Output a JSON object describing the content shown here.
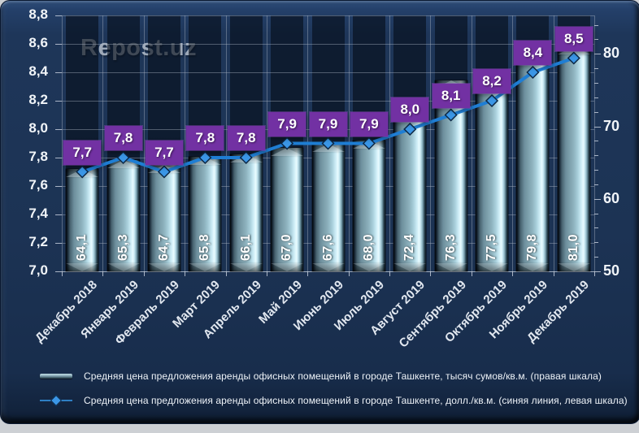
{
  "watermark": "Repost.uz",
  "chart_data": {
    "type": "combo",
    "categories": [
      "Декабрь 2018",
      "Январь 2019",
      "Февраль 2019",
      "Март 2019",
      "Апрель 2019",
      "Май 2019",
      "Июнь 2019",
      "Июль 2019",
      "Август 2019",
      "Сентябрь 2019",
      "Октябрь 2019",
      "Ноябрь 2019",
      "Декабрь 2019"
    ],
    "series": [
      {
        "name": "Средняя цена предложения аренды офисных помещений в городе Ташкенте, тысяч сумов/кв.м. (правая шкала)",
        "type": "bar",
        "axis": "right",
        "values": [
          64.1,
          65.3,
          64.7,
          65.8,
          66.1,
          67.0,
          67.6,
          68.0,
          72.4,
          76.3,
          77.5,
          79.8,
          81.0
        ],
        "labels": [
          "64,1",
          "65,3",
          "64,7",
          "65,8",
          "66,1",
          "67,0",
          "67,6",
          "68,0",
          "72,4",
          "76,3",
          "77,5",
          "79,8",
          "81,0"
        ]
      },
      {
        "name": "Средняя цена предложения аренды офисных помещений в городе Ташкенте, долл./кв.м. (синяя линия, левая шкала)",
        "type": "line",
        "axis": "left",
        "values": [
          7.7,
          7.8,
          7.7,
          7.8,
          7.8,
          7.9,
          7.9,
          7.9,
          8.0,
          8.1,
          8.2,
          8.4,
          8.5
        ],
        "labels": [
          "7,7",
          "7,8",
          "7,7",
          "7,8",
          "7,8",
          "7,9",
          "7,9",
          "7,9",
          "8,0",
          "8,1",
          "8,2",
          "8,4",
          "8,5"
        ]
      }
    ],
    "left_axis": {
      "min": 7.0,
      "max": 8.8,
      "step": 0.2,
      "tick_labels": [
        "7,0",
        "7,2",
        "7,4",
        "7,6",
        "7,8",
        "8,0",
        "8,2",
        "8,4",
        "8,6",
        "8,8"
      ]
    },
    "right_axis": {
      "min": 50,
      "max": 85.3,
      "minor_step": 2,
      "tick_values": [
        50,
        60,
        70,
        80
      ],
      "tick_labels": [
        "50",
        "60",
        "70",
        "80"
      ]
    },
    "grid": true,
    "legend_position": "bottom",
    "title": ""
  },
  "legend": {
    "items": [
      {
        "label": "Средняя цена предложения аренды офисных помещений в городе Ташкенте, тысяч сумов/кв.м. (правая шкала)",
        "marker": "bar-swatch"
      },
      {
        "label": "Средняя цена предложения аренды офисных помещений в городе Ташкенте, долл./кв.м. (синяя линия, левая шкала)",
        "marker": "line-marker"
      }
    ]
  },
  "colors": {
    "panel_bg": "#1c3354",
    "line": "#1f7ed4",
    "marker_fill": "#3b96e6",
    "marker_stroke": "#0c2846",
    "point_label_bg": "#7231a3",
    "bar_highlight": "#e9fcff",
    "gridline": "#aab3c4",
    "axis_text": "#f1f5f9"
  }
}
